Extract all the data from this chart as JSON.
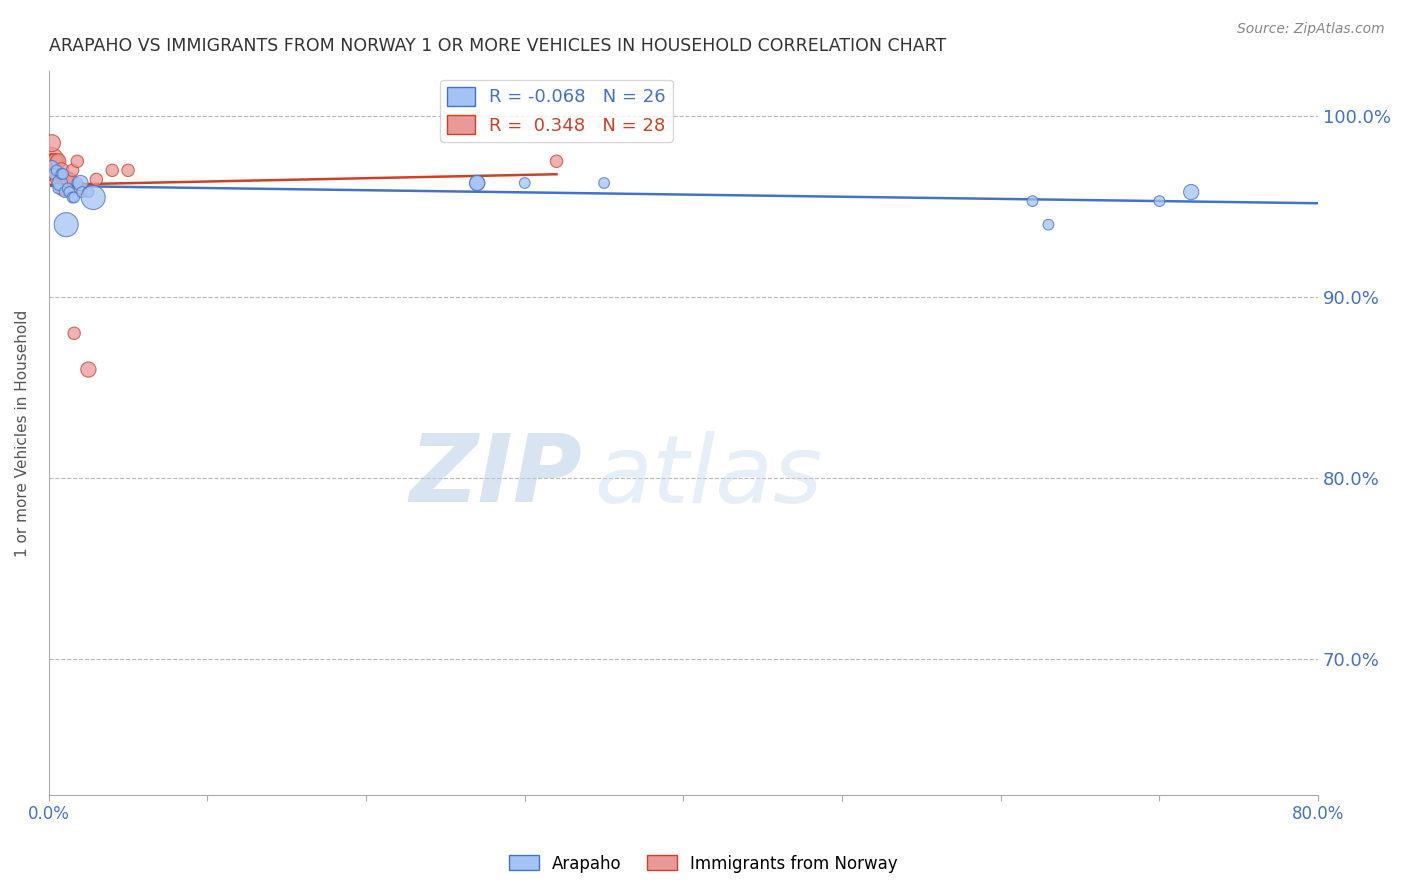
{
  "title": "ARAPAHO VS IMMIGRANTS FROM NORWAY 1 OR MORE VEHICLES IN HOUSEHOLD CORRELATION CHART",
  "source": "Source: ZipAtlas.com",
  "ylabel": "1 or more Vehicles in Household",
  "xlim": [
    0.0,
    0.8
  ],
  "ylim": [
    0.625,
    1.025
  ],
  "xticks": [
    0.0,
    0.1,
    0.2,
    0.3,
    0.4,
    0.5,
    0.6,
    0.7,
    0.8
  ],
  "xtick_labels": [
    "0.0%",
    "",
    "",
    "",
    "",
    "",
    "",
    "",
    "80.0%"
  ],
  "yticks": [
    0.7,
    0.8,
    0.9,
    1.0
  ],
  "ytick_labels": [
    "70.0%",
    "80.0%",
    "90.0%",
    "100.0%"
  ],
  "blue_color": "#a4c2f4",
  "pink_color": "#ea9999",
  "blue_line_color": "#4472c4",
  "pink_line_color": "#cc4125",
  "legend_blue_label": "R = -0.068   N = 26",
  "legend_pink_label": "R =  0.348   N = 28",
  "watermark_zip": "ZIP",
  "watermark_atlas": "atlas",
  "background_color": "#ffffff",
  "grid_color": "#b7b7b7",
  "arapaho_x": [
    0.002,
    0.003,
    0.005,
    0.006,
    0.007,
    0.008,
    0.009,
    0.01,
    0.011,
    0.012,
    0.013,
    0.015,
    0.016,
    0.018,
    0.02,
    0.021,
    0.025,
    0.028,
    0.27,
    0.27,
    0.3,
    0.35,
    0.62,
    0.63,
    0.7,
    0.72
  ],
  "arapaho_y": [
    0.972,
    0.968,
    0.97,
    0.96,
    0.963,
    0.968,
    0.968,
    0.958,
    0.94,
    0.96,
    0.958,
    0.955,
    0.955,
    0.963,
    0.963,
    0.958,
    0.958,
    0.955,
    0.963,
    0.963,
    0.963,
    0.963,
    0.953,
    0.94,
    0.953,
    0.958
  ],
  "arapaho_sizes": [
    80,
    60,
    60,
    60,
    120,
    60,
    60,
    60,
    300,
    60,
    60,
    60,
    60,
    60,
    120,
    60,
    60,
    300,
    120,
    120,
    60,
    60,
    60,
    60,
    60,
    120
  ],
  "norway_x": [
    0.001,
    0.001,
    0.002,
    0.002,
    0.003,
    0.003,
    0.004,
    0.005,
    0.005,
    0.006,
    0.007,
    0.008,
    0.008,
    0.009,
    0.01,
    0.01,
    0.012,
    0.012,
    0.014,
    0.015,
    0.016,
    0.018,
    0.02,
    0.025,
    0.03,
    0.04,
    0.05,
    0.32
  ],
  "norway_y": [
    0.975,
    0.968,
    0.985,
    0.975,
    0.975,
    0.975,
    0.975,
    0.975,
    0.965,
    0.975,
    0.965,
    0.965,
    0.97,
    0.96,
    0.965,
    0.96,
    0.965,
    0.965,
    0.965,
    0.97,
    0.88,
    0.975,
    0.96,
    0.86,
    0.965,
    0.97,
    0.97,
    0.975
  ],
  "norway_sizes": [
    400,
    80,
    150,
    120,
    120,
    120,
    120,
    80,
    80,
    120,
    80,
    120,
    120,
    120,
    120,
    80,
    120,
    80,
    80,
    80,
    80,
    80,
    80,
    120,
    80,
    80,
    80,
    80
  ]
}
